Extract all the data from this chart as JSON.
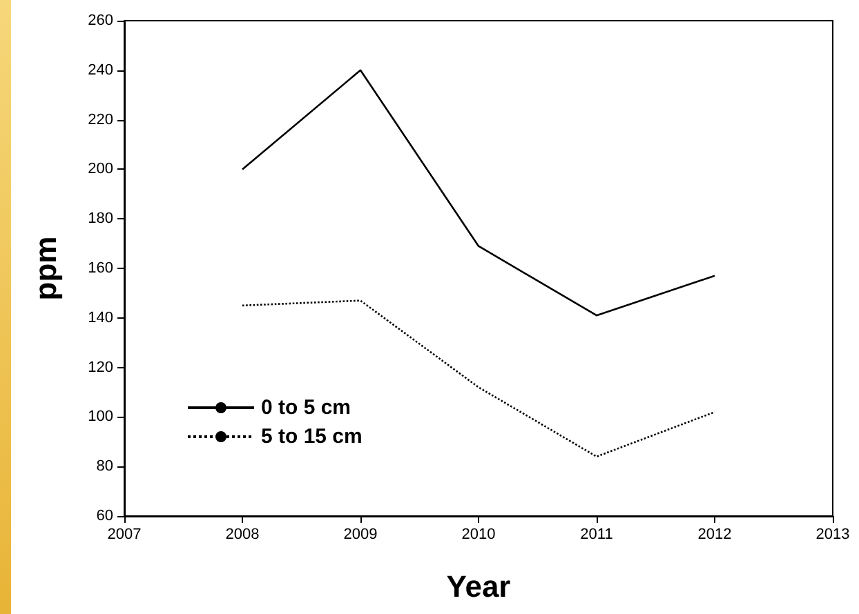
{
  "chart_data": {
    "type": "line",
    "xlabel": "Year",
    "ylabel": "ppm",
    "x": [
      2008,
      2009,
      2010,
      2011,
      2012
    ],
    "series": [
      {
        "name": "0 to 5 cm",
        "color": "#000000",
        "line_style": "solid",
        "values": [
          200,
          240,
          169,
          141,
          157
        ]
      },
      {
        "name": "5 to 15 cm",
        "color": "#000000",
        "line_style": "dotted",
        "values": [
          145,
          147,
          112,
          84,
          102
        ]
      }
    ],
    "xlim": [
      2007,
      2013
    ],
    "xticks": [
      2007,
      2008,
      2009,
      2010,
      2011,
      2012,
      2013
    ],
    "ylim": [
      60,
      260
    ],
    "yticks": [
      60,
      80,
      100,
      120,
      140,
      160,
      180,
      200,
      220,
      240,
      260
    ],
    "grid": false,
    "legend": "bottom left",
    "marker": "none"
  }
}
